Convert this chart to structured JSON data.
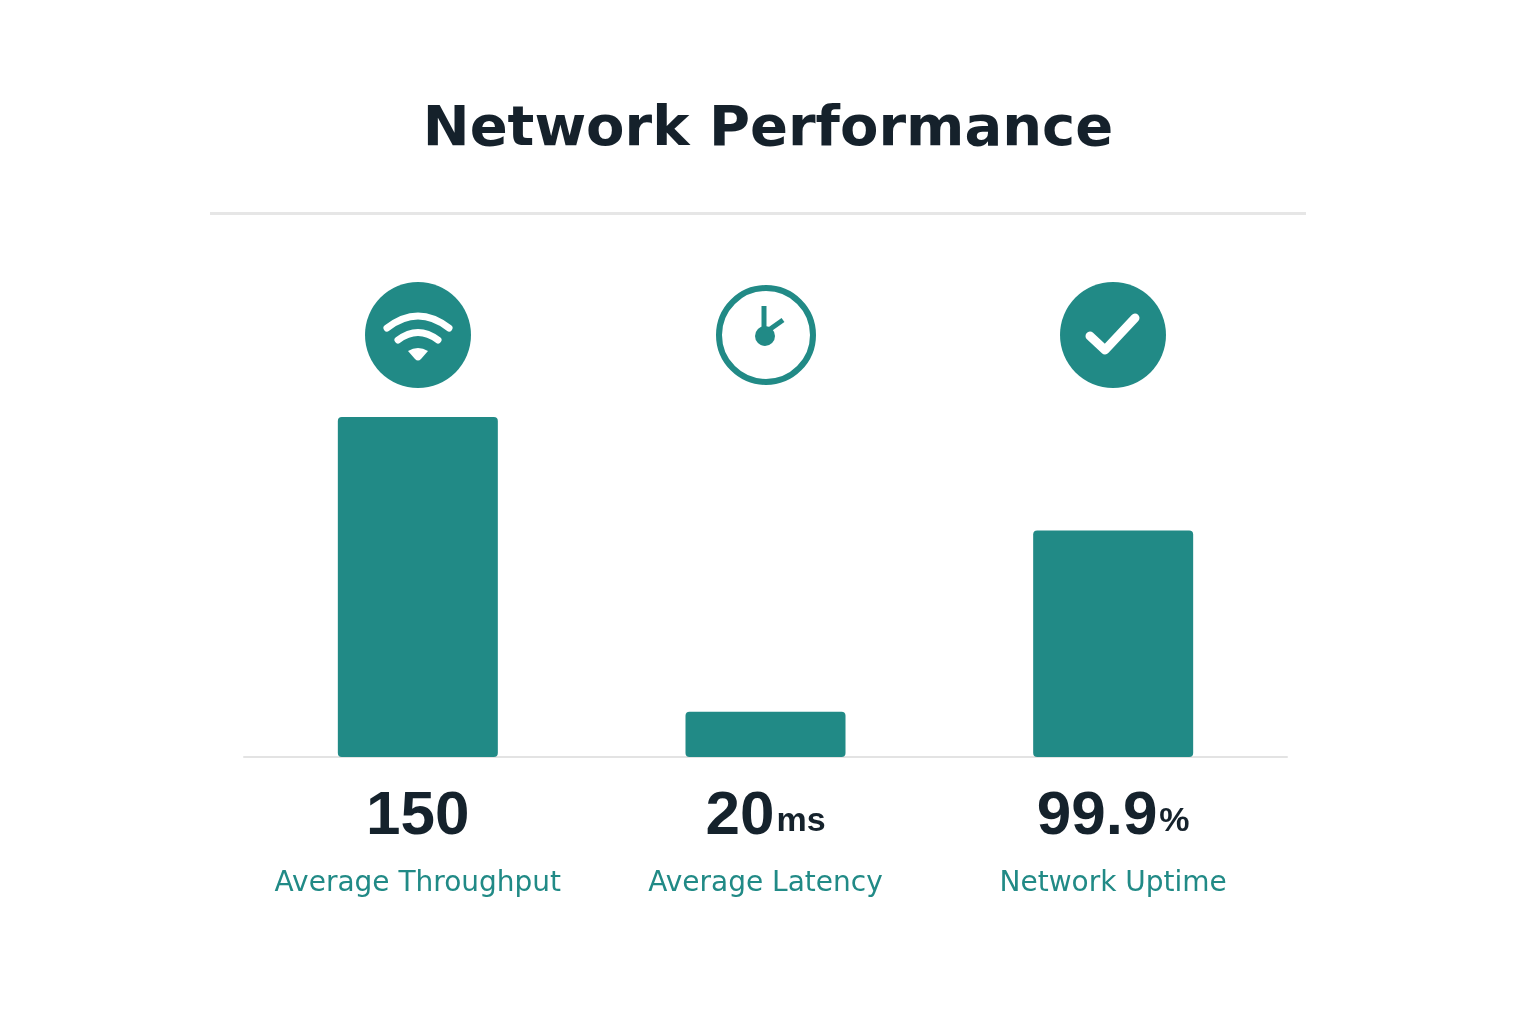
{
  "chart_data": {
    "type": "bar",
    "title": "Network Performance",
    "categories": [
      "Average Throughput",
      "Average Latency",
      "Network Uptime"
    ],
    "values": [
      150,
      20,
      99.9
    ],
    "value_labels": [
      "150",
      "20ms",
      "99.9%"
    ],
    "color": "#218a86"
  }
}
